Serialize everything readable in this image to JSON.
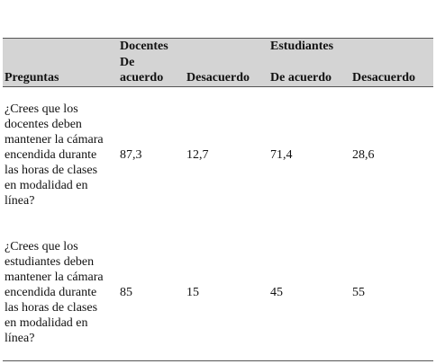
{
  "table": {
    "groups": [
      "Docentes",
      "Estudiantes"
    ],
    "columns": [
      "Preguntas",
      "De acuerdo",
      "Desacuerdo",
      "De acuerdo",
      "Desacuerdo"
    ],
    "rows": [
      [
        "¿Crees que los docentes deben mantener la cámara encendida durante las horas de clases en modalidad en línea?",
        "87,3",
        "12,7",
        "71,4",
        "28,6"
      ],
      [
        "¿Crees que los estudiantes deben mantener la cámara encendida durante las horas de clases en modalidad en línea?",
        "85",
        "15",
        "45",
        "55"
      ]
    ]
  }
}
